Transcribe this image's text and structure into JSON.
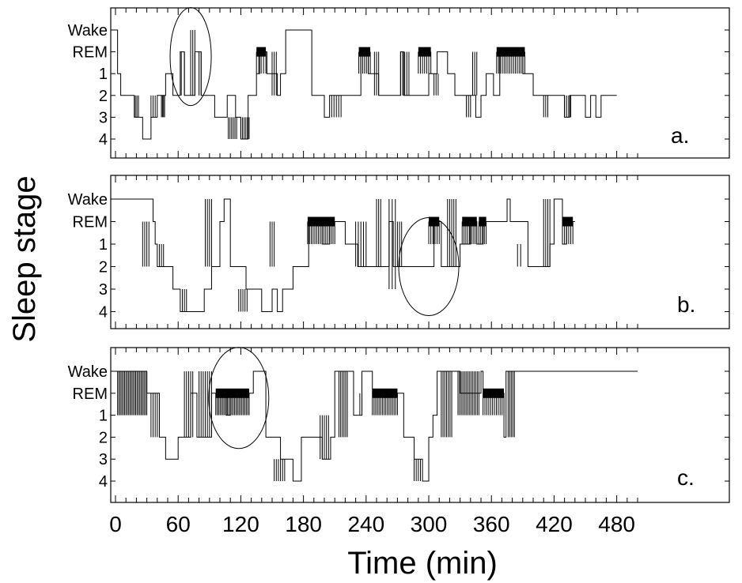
{
  "chart_data": {
    "type": "line",
    "ylabel": "Sleep stage",
    "xlabel": "Time (min)",
    "x_ticks": [
      "0",
      "60",
      "120",
      "180",
      "240",
      "300",
      "360",
      "420",
      "480"
    ],
    "xlim": [
      0,
      500
    ],
    "y_levels": [
      "Wake",
      "REM",
      "1",
      "2",
      "3",
      "4"
    ],
    "colors": {
      "line": "#000000",
      "background": "#ffffff"
    },
    "panels": [
      {
        "label": "a.",
        "ellipse_center": [
          72,
          "REM"
        ],
        "segments": [
          [
            0,
            "Wake"
          ],
          [
            2,
            "1"
          ],
          [
            5,
            "2"
          ],
          [
            18,
            "3"
          ],
          [
            26,
            "4"
          ],
          [
            34,
            "3"
          ],
          [
            40,
            "2"
          ],
          [
            48,
            "1"
          ],
          [
            55,
            "2"
          ],
          [
            62,
            "REM"
          ],
          [
            66,
            "2"
          ],
          [
            76,
            "REM"
          ],
          [
            82,
            "2"
          ],
          [
            95,
            "3"
          ],
          [
            107,
            "2"
          ],
          [
            115,
            "3"
          ],
          [
            120,
            "4"
          ],
          [
            127,
            "2"
          ],
          [
            135,
            "1"
          ],
          [
            138,
            "REM"
          ],
          [
            145,
            "1"
          ],
          [
            155,
            "2"
          ],
          [
            158,
            "1"
          ],
          [
            163,
            "Wake"
          ],
          [
            188,
            "2"
          ],
          [
            200,
            "3"
          ],
          [
            205,
            "2"
          ],
          [
            235,
            "REM"
          ],
          [
            242,
            "1"
          ],
          [
            252,
            "2"
          ],
          [
            273,
            "REM"
          ],
          [
            276,
            "2"
          ],
          [
            300,
            "1"
          ],
          [
            308,
            "REM"
          ],
          [
            318,
            "1"
          ],
          [
            325,
            "2"
          ],
          [
            345,
            "3"
          ],
          [
            350,
            "2"
          ],
          [
            355,
            "1"
          ],
          [
            362,
            "2"
          ],
          [
            368,
            "REM"
          ],
          [
            390,
            "1"
          ],
          [
            400,
            "2"
          ],
          [
            430,
            "3"
          ],
          [
            435,
            "2"
          ],
          [
            450,
            "3"
          ],
          [
            455,
            "2"
          ],
          [
            460,
            "3"
          ],
          [
            465,
            "2"
          ],
          [
            480,
            "2"
          ]
        ],
        "bursts": [
          [
            19,
            22,
            "2",
            "3",
            3
          ],
          [
            34,
            38,
            "2",
            "3",
            3
          ],
          [
            44,
            47,
            "2",
            "3",
            4
          ],
          [
            63,
            66,
            "REM",
            "2",
            2
          ],
          [
            72,
            76,
            "Wake",
            "2",
            3
          ],
          [
            80,
            82,
            "REM",
            "2",
            2
          ],
          [
            108,
            116,
            "3",
            "4",
            6
          ],
          [
            120,
            128,
            "3",
            "4",
            6
          ],
          [
            135,
            144,
            "REM",
            "1",
            5
          ],
          [
            150,
            154,
            "REM",
            "2",
            3
          ],
          [
            207,
            216,
            "2",
            "3",
            5
          ],
          [
            233,
            244,
            "REM",
            "1",
            7
          ],
          [
            248,
            252,
            "REM",
            "2",
            3
          ],
          [
            273,
            281,
            "REM",
            "2",
            5
          ],
          [
            290,
            302,
            "REM",
            "1",
            7
          ],
          [
            305,
            309,
            "1",
            "2",
            3
          ],
          [
            336,
            340,
            "2",
            "3",
            3
          ],
          [
            342,
            346,
            "REM",
            "2",
            3
          ],
          [
            365,
            392,
            "REM",
            "1",
            16
          ],
          [
            410,
            414,
            "2",
            "3",
            3
          ],
          [
            430,
            436,
            "2",
            "3",
            4
          ]
        ]
      },
      {
        "label": "b.",
        "ellipse_center": [
          300,
          "2"
        ],
        "segments": [
          [
            0,
            "Wake"
          ],
          [
            36,
            "REM"
          ],
          [
            38,
            "1"
          ],
          [
            40,
            "2"
          ],
          [
            55,
            "3"
          ],
          [
            62,
            "4"
          ],
          [
            85,
            "3"
          ],
          [
            92,
            "2"
          ],
          [
            100,
            "REM"
          ],
          [
            104,
            "Wake"
          ],
          [
            110,
            "2"
          ],
          [
            125,
            "3"
          ],
          [
            140,
            "4"
          ],
          [
            150,
            "3"
          ],
          [
            155,
            "4"
          ],
          [
            160,
            "3"
          ],
          [
            170,
            "2"
          ],
          [
            185,
            "REM"
          ],
          [
            198,
            "1"
          ],
          [
            205,
            "REM"
          ],
          [
            220,
            "1"
          ],
          [
            232,
            "2"
          ],
          [
            262,
            "REM"
          ],
          [
            266,
            "2"
          ],
          [
            305,
            "REM"
          ],
          [
            312,
            "2"
          ],
          [
            330,
            "1"
          ],
          [
            340,
            "REM"
          ],
          [
            346,
            "1"
          ],
          [
            352,
            "REM"
          ],
          [
            375,
            "Wake"
          ],
          [
            378,
            "REM"
          ],
          [
            395,
            "2"
          ],
          [
            416,
            "1"
          ],
          [
            420,
            "Wake"
          ],
          [
            428,
            "1"
          ],
          [
            432,
            "REM"
          ],
          [
            440,
            "REM"
          ]
        ],
        "bursts": [
          [
            26,
            32,
            "REM",
            "2",
            4
          ],
          [
            42,
            46,
            "1",
            "2",
            3
          ],
          [
            64,
            68,
            "3",
            "4",
            3
          ],
          [
            86,
            92,
            "Wake",
            "2",
            4
          ],
          [
            118,
            126,
            "3",
            "4",
            5
          ],
          [
            148,
            152,
            "REM",
            "2",
            3
          ],
          [
            184,
            210,
            "REM",
            "1",
            16
          ],
          [
            230,
            240,
            "REM",
            "2",
            5
          ],
          [
            250,
            254,
            "Wake",
            "2",
            3
          ],
          [
            262,
            268,
            "Wake",
            "3",
            3
          ],
          [
            270,
            274,
            "REM",
            "2",
            3
          ],
          [
            300,
            310,
            "REM",
            "1",
            6
          ],
          [
            318,
            326,
            "Wake",
            "2",
            5
          ],
          [
            332,
            346,
            "REM",
            "1",
            9
          ],
          [
            348,
            355,
            "REM",
            "1",
            5
          ],
          [
            385,
            388,
            "1",
            "2",
            2
          ],
          [
            410,
            416,
            "Wake",
            "2",
            4
          ],
          [
            428,
            438,
            "REM",
            "1",
            6
          ]
        ]
      },
      {
        "label": "c.",
        "ellipse_center": [
          118,
          "REM"
        ],
        "segments": [
          [
            0,
            "Wake"
          ],
          [
            30,
            "REM"
          ],
          [
            42,
            "2"
          ],
          [
            48,
            "3"
          ],
          [
            60,
            "2"
          ],
          [
            72,
            "REM"
          ],
          [
            78,
            "2"
          ],
          [
            92,
            "REM"
          ],
          [
            106,
            "1"
          ],
          [
            110,
            "REM"
          ],
          [
            132,
            "Wake"
          ],
          [
            144,
            "2"
          ],
          [
            158,
            "3"
          ],
          [
            170,
            "4"
          ],
          [
            178,
            "2"
          ],
          [
            198,
            "3"
          ],
          [
            206,
            "2"
          ],
          [
            210,
            "Wake"
          ],
          [
            228,
            "1"
          ],
          [
            236,
            "Wake"
          ],
          [
            246,
            "REM"
          ],
          [
            276,
            "2"
          ],
          [
            286,
            "3"
          ],
          [
            294,
            "4"
          ],
          [
            300,
            "2"
          ],
          [
            304,
            "1"
          ],
          [
            308,
            "Wake"
          ],
          [
            330,
            "REM"
          ],
          [
            350,
            "Wake"
          ],
          [
            352,
            "REM"
          ],
          [
            372,
            "2"
          ],
          [
            374,
            "Wake"
          ],
          [
            500,
            "Wake"
          ]
        ],
        "bursts": [
          [
            2,
            30,
            "Wake",
            "1",
            22
          ],
          [
            34,
            42,
            "REM",
            "2",
            5
          ],
          [
            66,
            74,
            "Wake",
            "2",
            5
          ],
          [
            80,
            92,
            "Wake",
            "2",
            7
          ],
          [
            96,
            128,
            "REM",
            "1",
            24
          ],
          [
            152,
            162,
            "3",
            "4",
            6
          ],
          [
            196,
            204,
            "1",
            "3",
            5
          ],
          [
            214,
            222,
            "Wake",
            "2",
            6
          ],
          [
            234,
            236,
            "REM",
            "1",
            2
          ],
          [
            246,
            270,
            "REM",
            "1",
            16
          ],
          [
            286,
            292,
            "3",
            "4",
            4
          ],
          [
            312,
            322,
            "Wake",
            "2",
            7
          ],
          [
            328,
            348,
            "Wake",
            "1",
            14
          ],
          [
            352,
            372,
            "REM",
            "1",
            12
          ],
          [
            376,
            382,
            "Wake",
            "2",
            5
          ]
        ]
      }
    ]
  }
}
